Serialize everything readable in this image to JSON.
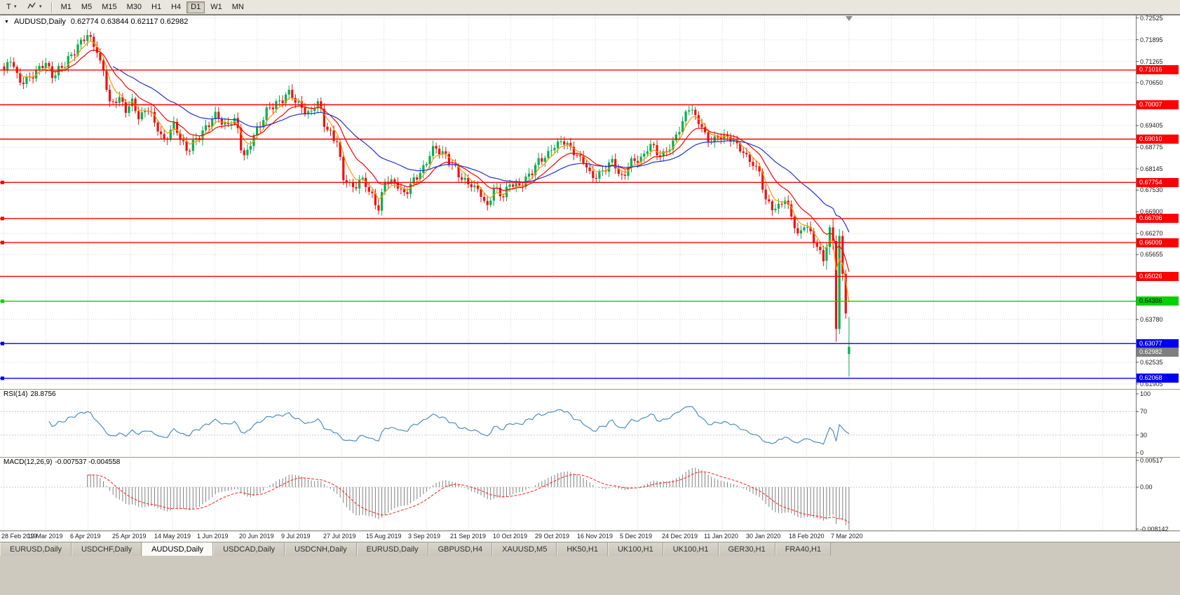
{
  "toolbar": {
    "t_label": "T",
    "timeframes": [
      "M1",
      "M5",
      "M15",
      "M30",
      "H1",
      "H4",
      "D1",
      "W1",
      "MN"
    ],
    "active_timeframe": "D1"
  },
  "chart": {
    "title_symbol": "AUDUSD,Daily",
    "title_ohlc": "0.62774 0.63844 0.62117 0.62982"
  },
  "chart_data": {
    "type": "candlestick",
    "symbol": "AUDUSD",
    "timeframe": "Daily",
    "ohlc_display": {
      "open": 0.62774,
      "high": 0.63844,
      "low": 0.62117,
      "close": 0.62982
    },
    "bars": 265,
    "x_axis": {
      "labels": [
        "28 Feb 2019",
        "19 Mar 2019",
        "6 Apr 2019",
        "25 Apr 2019",
        "14 May 2019",
        "1 Jun 2019",
        "20 Jun 2019",
        "9 Jul 2019",
        "27 Jul 2019",
        "15 Aug 2019",
        "3 Sep 2019",
        "21 Sep 2019",
        "10 Oct 2019",
        "29 Oct 2019",
        "16 Nov 2019",
        "5 Dec 2019",
        "24 Dec 2019",
        "11 Jan 2020",
        "30 Jan 2020",
        "18 Feb 2020",
        "7 Mar 2020"
      ]
    },
    "y_axis": {
      "price_top": 0.726,
      "price_bottom": 0.618,
      "ticks": [
        "0.72525",
        "0.71895",
        "0.71265",
        "0.70650",
        "0.69405",
        "0.68775",
        "0.68145",
        "0.67530",
        "0.66900",
        "0.66270",
        "0.65655",
        "0.63780",
        "0.62535",
        "0.61905"
      ],
      "grid_prices": [
        0.72525,
        0.71895,
        0.71265,
        0.7065,
        0.7002,
        0.69405,
        0.68775,
        0.68145,
        0.6753,
        0.669,
        0.6627,
        0.65655,
        0.6504,
        0.6441,
        0.6378,
        0.6315,
        0.62535,
        0.61905
      ]
    },
    "price_path": [
      [
        0,
        0.7095
      ],
      [
        2,
        0.7125
      ],
      [
        5,
        0.7068
      ],
      [
        8,
        0.7085
      ],
      [
        11,
        0.7108
      ],
      [
        13,
        0.7118
      ],
      [
        15,
        0.7078
      ],
      [
        18,
        0.711
      ],
      [
        21,
        0.715
      ],
      [
        24,
        0.7185
      ],
      [
        26,
        0.72
      ],
      [
        28,
        0.7168
      ],
      [
        31,
        0.71
      ],
      [
        33,
        0.7008
      ],
      [
        36,
        0.7025
      ],
      [
        38,
        0.6985
      ],
      [
        40,
        0.7005
      ],
      [
        42,
        0.6958
      ],
      [
        45,
        0.699
      ],
      [
        48,
        0.6938
      ],
      [
        50,
        0.6898
      ],
      [
        53,
        0.6938
      ],
      [
        55,
        0.6898
      ],
      [
        57,
        0.6865
      ],
      [
        60,
        0.6905
      ],
      [
        63,
        0.6938
      ],
      [
        66,
        0.6968
      ],
      [
        69,
        0.6935
      ],
      [
        72,
        0.6958
      ],
      [
        75,
        0.6858
      ],
      [
        79,
        0.6925
      ],
      [
        83,
        0.6988
      ],
      [
        86,
        0.7012
      ],
      [
        89,
        0.7042
      ],
      [
        92,
        0.7
      ],
      [
        95,
        0.6968
      ],
      [
        98,
        0.7005
      ],
      [
        101,
        0.6932
      ],
      [
        104,
        0.6898
      ],
      [
        106,
        0.6782
      ],
      [
        109,
        0.6755
      ],
      [
        112,
        0.6785
      ],
      [
        115,
        0.6742
      ],
      [
        117,
        0.67
      ],
      [
        119,
        0.6778
      ],
      [
        122,
        0.6768
      ],
      [
        125,
        0.6742
      ],
      [
        128,
        0.6788
      ],
      [
        131,
        0.6818
      ],
      [
        134,
        0.6868
      ],
      [
        137,
        0.6858
      ],
      [
        140,
        0.6832
      ],
      [
        143,
        0.6792
      ],
      [
        145,
        0.6772
      ],
      [
        148,
        0.6748
      ],
      [
        151,
        0.6702
      ],
      [
        153,
        0.6762
      ],
      [
        156,
        0.6742
      ],
      [
        158,
        0.6772
      ],
      [
        161,
        0.6758
      ],
      [
        164,
        0.6792
      ],
      [
        167,
        0.6842
      ],
      [
        170,
        0.6862
      ],
      [
        172,
        0.6882
      ],
      [
        175,
        0.6888
      ],
      [
        178,
        0.6862
      ],
      [
        181,
        0.6842
      ],
      [
        184,
        0.6792
      ],
      [
        187,
        0.6802
      ],
      [
        190,
        0.6832
      ],
      [
        193,
        0.6792
      ],
      [
        196,
        0.6842
      ],
      [
        199,
        0.6842
      ],
      [
        202,
        0.6878
      ],
      [
        205,
        0.6852
      ],
      [
        208,
        0.6882
      ],
      [
        211,
        0.6932
      ],
      [
        214,
        0.6988
      ],
      [
        217,
        0.6948
      ],
      [
        220,
        0.6902
      ],
      [
        224,
        0.6912
      ],
      [
        227,
        0.6898
      ],
      [
        230,
        0.6868
      ],
      [
        233,
        0.6842
      ],
      [
        236,
        0.6812
      ],
      [
        238,
        0.6722
      ],
      [
        241,
        0.6692
      ],
      [
        244,
        0.6722
      ],
      [
        246,
        0.6682
      ],
      [
        248,
        0.6625
      ],
      [
        250,
        0.6658
      ],
      [
        252,
        0.6628
      ],
      [
        254,
        0.6582
      ],
      [
        256,
        0.6548
      ],
      [
        257,
        0.6588
      ],
      [
        258,
        0.6645
      ],
      [
        259,
        0.6605
      ],
      [
        260,
        0.635
      ],
      [
        261,
        0.662
      ],
      [
        262,
        0.651
      ],
      [
        263,
        0.6395
      ],
      [
        264,
        0.62982
      ]
    ],
    "explicit_candles": {
      "257": [
        0.6548,
        0.6601,
        0.6522,
        0.6588
      ],
      "258": [
        0.6588,
        0.6652,
        0.6565,
        0.6645
      ],
      "259": [
        0.6645,
        0.6671,
        0.658,
        0.6605
      ],
      "260": [
        0.6605,
        0.6622,
        0.6313,
        0.635
      ],
      "261": [
        0.635,
        0.664,
        0.6335,
        0.662
      ],
      "262": [
        0.662,
        0.6635,
        0.649,
        0.651
      ],
      "263": [
        0.651,
        0.6522,
        0.638,
        0.6395
      ],
      "264": [
        0.62774,
        0.63844,
        0.62117,
        0.62982
      ]
    },
    "levels": [
      {
        "price": 0.71016,
        "label": "0.71016",
        "color": "#FF0000",
        "text": "light",
        "edge_marker": false
      },
      {
        "price": 0.70007,
        "label": "0.70007",
        "color": "#FF0000",
        "text": "light",
        "edge_marker": false
      },
      {
        "price": 0.6901,
        "label": "0.69010",
        "color": "#FF0000",
        "text": "light",
        "edge_marker": false
      },
      {
        "price": 0.67754,
        "label": "0.67754",
        "color": "#FF0000",
        "text": "light",
        "edge_marker": true
      },
      {
        "price": 0.66706,
        "label": "0.66706",
        "color": "#FF0000",
        "text": "light",
        "edge_marker": true
      },
      {
        "price": 0.66009,
        "label": "0.66009",
        "color": "#FF0000",
        "text": "light",
        "edge_marker": true
      },
      {
        "price": 0.65026,
        "label": "0.65026",
        "color": "#FF0000",
        "text": "light",
        "edge_marker": false
      },
      {
        "price": 0.64306,
        "label": "0.64306",
        "color": "#00D000",
        "text": "dark",
        "edge_marker": true
      },
      {
        "price": 0.63077,
        "label": "0.63077",
        "color": "#0000F0",
        "text": "light",
        "edge_marker": true
      },
      {
        "price": 0.62068,
        "label": "0.62068",
        "color": "#0000F0",
        "text": "light",
        "edge_marker": true
      }
    ],
    "current_price": {
      "value": 0.62982,
      "label": "0.62982"
    },
    "moving_averages": [
      {
        "period": 5,
        "color": "#FF9900"
      },
      {
        "period": 13,
        "color": "#FF0000"
      },
      {
        "period": 34,
        "color": "#2233CC"
      }
    ],
    "rsi": {
      "label": "RSI(14)",
      "value_label": "28.8756",
      "period": 14,
      "levels": [
        70,
        30
      ],
      "ticks": [
        "100",
        "70",
        "30",
        "0"
      ],
      "range": [
        0,
        100
      ]
    },
    "macd": {
      "label": "MACD(12,26,9)",
      "values_label": "-0.007537 -0.004558",
      "fast": 12,
      "slow": 26,
      "signal": 9,
      "ticks": [
        "0.00517",
        "0.00",
        "-0.008142"
      ],
      "range": [
        -0.008142,
        0.00517
      ]
    }
  },
  "tabs": {
    "items": [
      "EURUSD,Daily",
      "USDCHF,Daily",
      "AUDUSD,Daily",
      "USDCAD,Daily",
      "USDCNH,Daily",
      "EURUSD,Daily",
      "GBPUSD,H4",
      "XAUUSD,M5",
      "HK50,H1",
      "UK100,H1",
      "UK100,H1",
      "GER30,H1",
      "FRA40,H1"
    ],
    "active_index": 2
  },
  "colors": {
    "background": "#FFFFFF",
    "grid": "#D6D6D6",
    "candle_up": "#00B050",
    "candle_down": "#EE1111",
    "rsi_line": "#4F8FC0",
    "macd_hist": "#808080",
    "macd_signal": "#FF2222",
    "current_price_tag": "#7F7F7F"
  }
}
